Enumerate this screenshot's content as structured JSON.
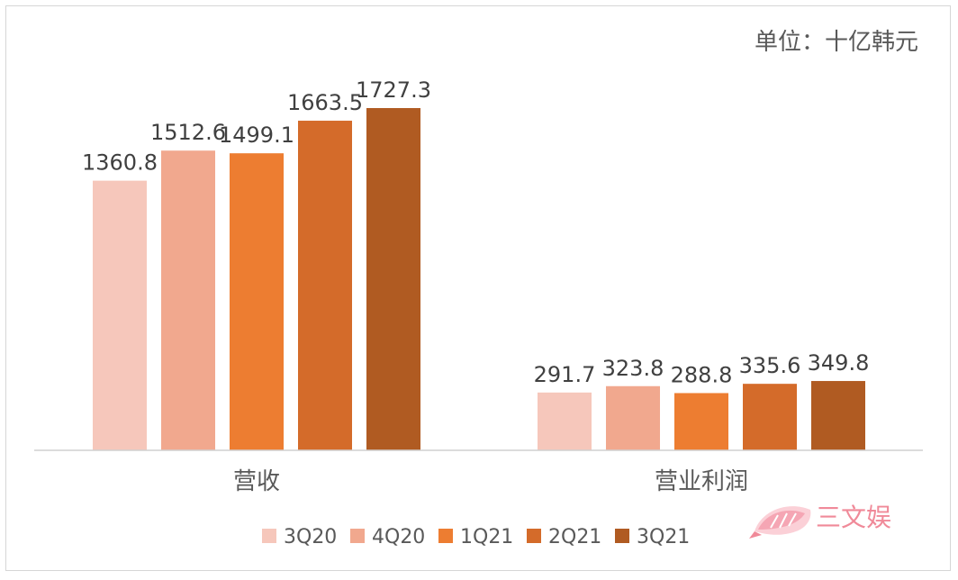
{
  "chart_data": {
    "type": "bar",
    "unit_label": "单位：十亿韩元",
    "categories": [
      "营收",
      "营业利润"
    ],
    "series": [
      {
        "name": "3Q20",
        "values": [
          1360.8,
          291.7
        ],
        "color": "#f6c7bb"
      },
      {
        "name": "4Q20",
        "values": [
          1512.6,
          323.8
        ],
        "color": "#f1a88e"
      },
      {
        "name": "1Q21",
        "values": [
          1499.1,
          288.8
        ],
        "color": "#ed7d31"
      },
      {
        "name": "2Q21",
        "values": [
          1663.5,
          335.6
        ],
        "color": "#d46b2a"
      },
      {
        "name": "3Q21",
        "values": [
          1727.3,
          349.8
        ],
        "color": "#b05b22"
      }
    ],
    "ylim": [
      0,
      1900
    ],
    "grid": false,
    "legend_position": "bottom"
  },
  "watermark": {
    "text": "三文娱",
    "icon": "fish-logo-icon",
    "color": "#f08a99"
  }
}
